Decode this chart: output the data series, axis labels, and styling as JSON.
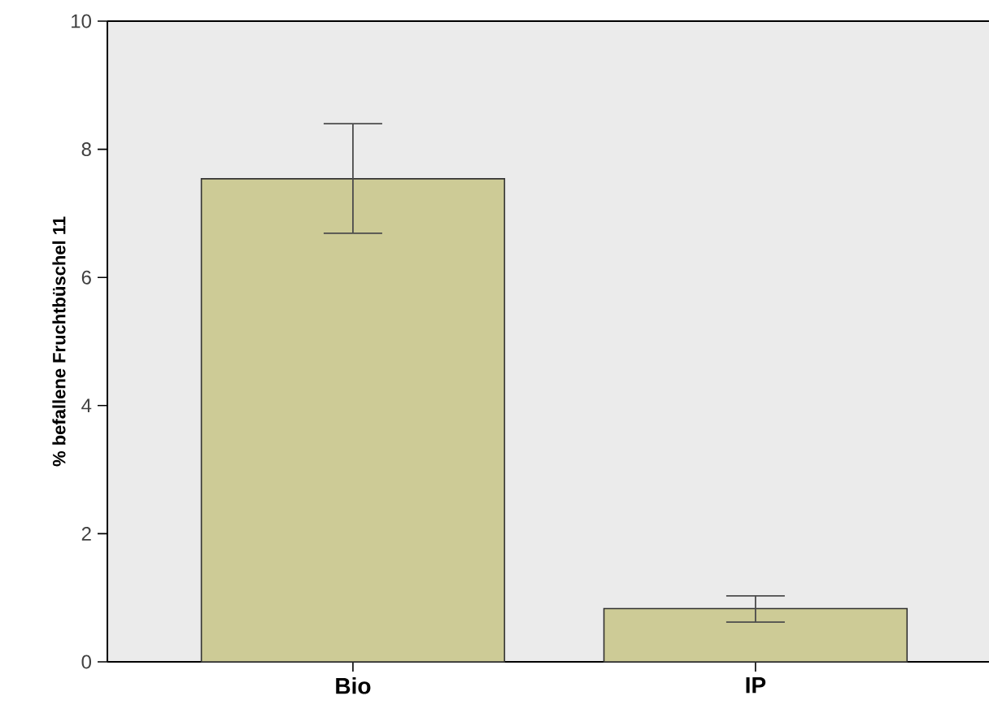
{
  "chart_data": {
    "type": "bar",
    "ylabel": "% befallene Fruchtbüschel 11",
    "categories": [
      "Bio",
      "IP"
    ],
    "values": [
      7.54,
      0.83
    ],
    "errors": [
      [
        6.69,
        8.4
      ],
      [
        0.62,
        1.03
      ]
    ],
    "color": "#cdcb96",
    "ylim": [
      0,
      10
    ],
    "yticks": [
      0,
      2,
      4,
      6,
      8,
      10
    ],
    "grid": false
  }
}
